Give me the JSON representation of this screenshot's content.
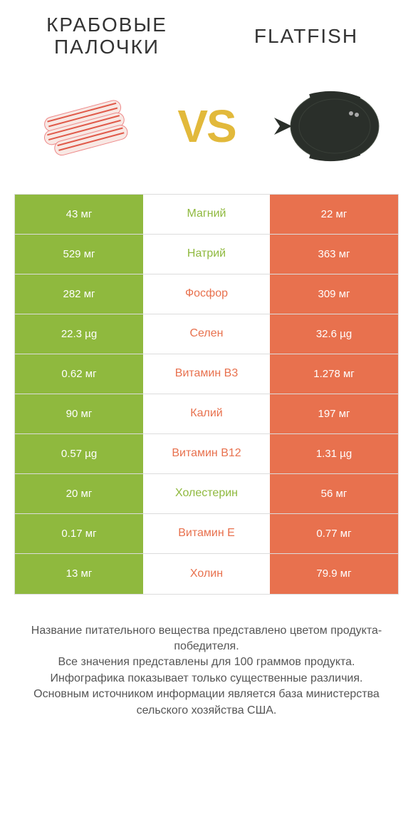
{
  "colors": {
    "green": "#8fb93e",
    "orange": "#e8714e",
    "vs": "#e2b93b",
    "border": "#dcdcdc",
    "title": "#333333",
    "footnote": "#555555",
    "background": "#ffffff"
  },
  "header": {
    "left_title": "КРАБОВЫЕ\nПАЛОЧКИ",
    "right_title": "FLATFISH",
    "vs_label": "VS"
  },
  "images": {
    "left_alt": "crab-sticks",
    "right_alt": "flatfish"
  },
  "table": {
    "left_color": "green",
    "right_color": "orange",
    "rows": [
      {
        "left": "43 мг",
        "label": "Магний",
        "right": "22 мг",
        "winner": "left"
      },
      {
        "left": "529 мг",
        "label": "Натрий",
        "right": "363 мг",
        "winner": "left"
      },
      {
        "left": "282 мг",
        "label": "Фосфор",
        "right": "309 мг",
        "winner": "right"
      },
      {
        "left": "22.3 µg",
        "label": "Селен",
        "right": "32.6 µg",
        "winner": "right"
      },
      {
        "left": "0.62 мг",
        "label": "Витамин B3",
        "right": "1.278 мг",
        "winner": "right"
      },
      {
        "left": "90 мг",
        "label": "Калий",
        "right": "197 мг",
        "winner": "right"
      },
      {
        "left": "0.57 µg",
        "label": "Витамин B12",
        "right": "1.31 µg",
        "winner": "right"
      },
      {
        "left": "20 мг",
        "label": "Холестерин",
        "right": "56 мг",
        "winner": "left"
      },
      {
        "left": "0.17 мг",
        "label": "Витамин E",
        "right": "0.77 мг",
        "winner": "right"
      },
      {
        "left": "13 мг",
        "label": "Холин",
        "right": "79.9 мг",
        "winner": "right"
      }
    ]
  },
  "footnote": "Название питательного вещества представлено цветом продукта-победителя.\nВсе значения представлены для 100 граммов продукта.\nИнфографика показывает только существенные различия.\nОсновным источником информации является база министерства сельского хозяйства США."
}
